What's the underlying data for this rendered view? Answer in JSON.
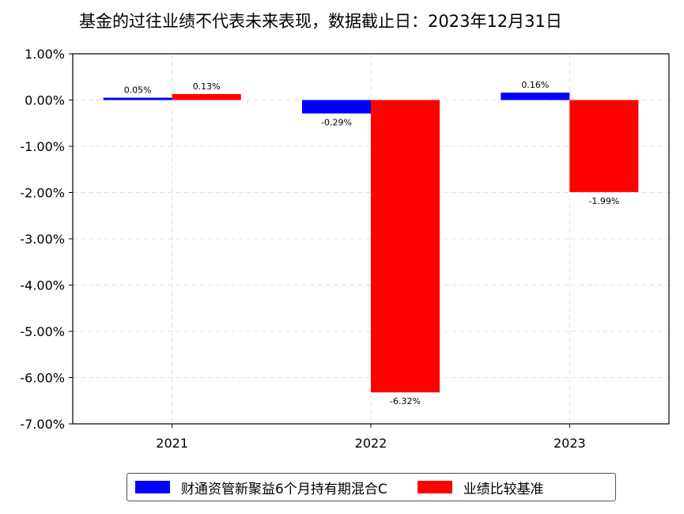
{
  "title": "基金的过往业绩不代表未来表现，数据截止日：2023年12月31日",
  "chart_data": {
    "type": "bar",
    "categories": [
      "2021",
      "2022",
      "2023"
    ],
    "series": [
      {
        "name": "财通资管新聚益6个月持有期混合C",
        "color": "#0000ff",
        "values": [
          0.05,
          -0.29,
          0.16
        ],
        "labels": [
          "0.05%",
          "-0.29%",
          "0.16%"
        ]
      },
      {
        "name": "业绩比较基准",
        "color": "#ff0000",
        "values": [
          0.13,
          -6.32,
          -1.99
        ],
        "labels": [
          "0.13%",
          "-6.32%",
          "-1.99%"
        ]
      }
    ],
    "ylim": [
      -7,
      1
    ],
    "yticks": [
      1,
      0,
      -1,
      -2,
      -3,
      -4,
      -5,
      -6,
      -7
    ],
    "ytick_labels": [
      "1.00%",
      "0.00%",
      "-1.00%",
      "-2.00%",
      "-3.00%",
      "-4.00%",
      "-5.00%",
      "-6.00%",
      "-7.00%"
    ],
    "grid": true,
    "legend_position": "bottom"
  }
}
